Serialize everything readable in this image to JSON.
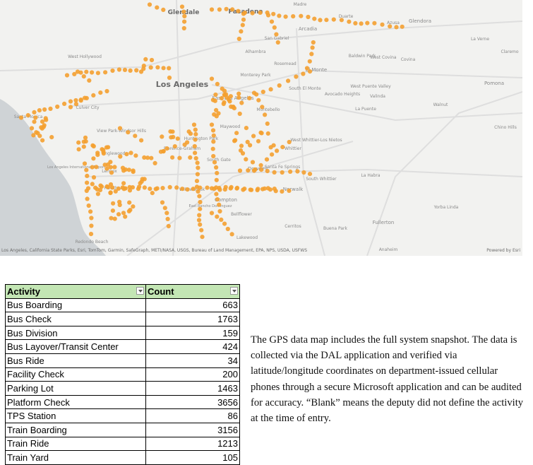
{
  "map": {
    "attribution": "Los Angeles, California State Parks, Esri, TomTom, Garmin, SafeGraph, METI/NASA, USGS, Bureau of Land Management, EPA, NPS, USDA, USFWS",
    "powered_by": "Powered by Esri",
    "point_color": "#f4a030",
    "places": [
      {
        "name": "Glendale"
      },
      {
        "name": "Pasadena"
      },
      {
        "name": "Madre"
      },
      {
        "name": "Duarte"
      },
      {
        "name": "Glendora"
      },
      {
        "name": "Azusa"
      },
      {
        "name": "Arcadia"
      },
      {
        "name": "San Gabriel"
      },
      {
        "name": "Alhambra"
      },
      {
        "name": "Rosemead"
      },
      {
        "name": "El Monte"
      },
      {
        "name": "Baldwin Park"
      },
      {
        "name": "West Covina"
      },
      {
        "name": "Covina"
      },
      {
        "name": "La Verne"
      },
      {
        "name": "Claremo"
      },
      {
        "name": "Pomona"
      },
      {
        "name": "West Hollywood"
      },
      {
        "name": "Los Angeles"
      },
      {
        "name": "Monterey Park"
      },
      {
        "name": "East Los Angeles"
      },
      {
        "name": "South El Monte"
      },
      {
        "name": "Avocado Heights"
      },
      {
        "name": "West Puente Valley"
      },
      {
        "name": "Valinda"
      },
      {
        "name": "La Puente"
      },
      {
        "name": "Walnut"
      },
      {
        "name": "Santa Monica"
      },
      {
        "name": "Culver City"
      },
      {
        "name": "Montebello"
      },
      {
        "name": "View Park-Windsor Hills"
      },
      {
        "name": "Maywood"
      },
      {
        "name": "Huntington Park"
      },
      {
        "name": "Florence-Graham"
      },
      {
        "name": "Inglewood"
      },
      {
        "name": "West Whittier-Los Nietos"
      },
      {
        "name": "Whittier"
      },
      {
        "name": "Chino Hills"
      },
      {
        "name": "Los Angeles International Airport"
      },
      {
        "name": "Lennox"
      },
      {
        "name": "South Gate"
      },
      {
        "name": "Downey"
      },
      {
        "name": "Santa Fe Springs"
      },
      {
        "name": "South Whittier"
      },
      {
        "name": "La Habra"
      },
      {
        "name": "Hawthorne"
      },
      {
        "name": "Willowbrook"
      },
      {
        "name": "Norwalk"
      },
      {
        "name": "Compton"
      },
      {
        "name": "East Rancho Dominguez"
      },
      {
        "name": "Bellflower"
      },
      {
        "name": "Yorba Linda"
      },
      {
        "name": "Fullerton"
      },
      {
        "name": "Cerritos"
      },
      {
        "name": "Buena Park"
      },
      {
        "name": "Lakewood"
      },
      {
        "name": "Redondo Beach"
      },
      {
        "name": "Anaheim"
      }
    ]
  },
  "table": {
    "headers": [
      "Activity",
      "Count"
    ],
    "rows": [
      {
        "activity": "Bus Boarding",
        "count": "663"
      },
      {
        "activity": "Bus Check",
        "count": "1763"
      },
      {
        "activity": "Bus Division",
        "count": "159"
      },
      {
        "activity": "Bus Layover/Transit Center",
        "count": "424"
      },
      {
        "activity": "Bus Ride",
        "count": "34"
      },
      {
        "activity": "Facility Check",
        "count": "200"
      },
      {
        "activity": "Parking Lot",
        "count": "1463"
      },
      {
        "activity": "Platform Check",
        "count": "3656"
      },
      {
        "activity": "TPS Station",
        "count": "86"
      },
      {
        "activity": "Train Boarding",
        "count": "3156"
      },
      {
        "activity": "Train Ride",
        "count": "1213"
      },
      {
        "activity": "Train Yard",
        "count": "105"
      }
    ]
  },
  "note": "The GPS data map includes the full system snapshot. The data is collected via the DAL application and verified via latitude/longitude coordinates on department-issued cellular phones through a secure Microsoft application and can be audited for accuracy. “Blank” means the deputy did not define the activity at the time of entry."
}
